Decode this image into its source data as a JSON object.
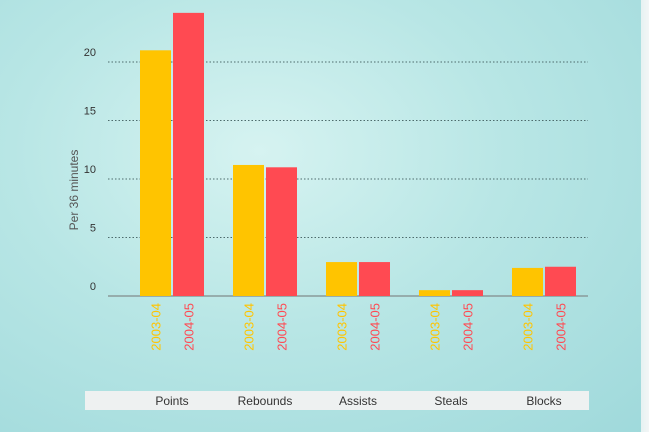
{
  "chart_data": {
    "type": "bar",
    "title": "",
    "xlabel": "",
    "ylabel": "Per 36 minutes",
    "ylim": [
      0,
      25
    ],
    "yticks": [
      0,
      5,
      10,
      15,
      20
    ],
    "grid": true,
    "categories": [
      "Points",
      "Rebounds",
      "Assists",
      "Steals",
      "Blocks"
    ],
    "series": [
      {
        "name": "2003-04",
        "color": "#ffc400",
        "values": [
          21.0,
          11.2,
          2.9,
          0.5,
          2.4
        ]
      },
      {
        "name": "2004-05",
        "color": "#ff4a52",
        "values": [
          24.2,
          11.0,
          2.9,
          0.5,
          2.5
        ]
      }
    ]
  }
}
